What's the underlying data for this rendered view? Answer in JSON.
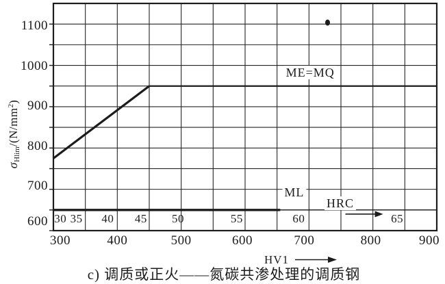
{
  "colors": {
    "ink": "#1c1c1c",
    "grid": "#242424",
    "background": "#ffffff"
  },
  "labels": {
    "sigma": "σ",
    "sigma_sub": "Hlim",
    "unit_pre": "/(N/mm",
    "unit_sup": "2",
    "unit_post": ")"
  },
  "chart_data": {
    "type": "line",
    "title": "c) 调质或正火——氮碳共渗处理的调质钢",
    "xlabel": "HV1",
    "ylabel": "σ Hlim/(N/mm²)",
    "xlim": [
      300,
      900
    ],
    "ylim": [
      600,
      1150
    ],
    "grid": true,
    "grid_step_x": 50,
    "grid_step_y": 50,
    "x_ticks": [
      300,
      400,
      500,
      600,
      700,
      800,
      900
    ],
    "y_ticks": [
      1100,
      1000,
      900,
      800,
      700,
      600
    ],
    "legend_position": "inline-labels",
    "series": [
      {
        "name": "ME=MQ",
        "points": [
          [
            300,
            775
          ],
          [
            450,
            950
          ],
          [
            900,
            950
          ]
        ],
        "label_pos": [
          702,
          982
        ],
        "strokes": [
          {
            "width": 3.2,
            "points": [
              [
                300,
                775
              ],
              [
                450,
                950
              ]
            ]
          },
          {
            "width": 2.2,
            "points": [
              [
                450,
                950
              ],
              [
                900,
                950
              ]
            ]
          }
        ]
      },
      {
        "name": "ML",
        "points": [
          [
            300,
            650
          ],
          [
            900,
            650
          ]
        ],
        "label_pos": [
          677,
          692
        ],
        "strokes": [
          {
            "width": 3.4,
            "points": [
              [
                300,
                650
              ],
              [
                655,
                650
              ]
            ]
          },
          {
            "width": 1.4,
            "points": [
              [
                655,
                650
              ],
              [
                900,
                650
              ]
            ]
          }
        ]
      }
    ],
    "secondary_scale": {
      "name": "HRC",
      "label_pos": [
        749,
        667
      ],
      "arrow": {
        "from_hv": 757,
        "to_hv": 816,
        "v": 640
      },
      "labels": [
        {
          "v": "30",
          "hv": 311
        },
        {
          "v": "35",
          "hv": 336
        },
        {
          "v": "40",
          "hv": 385
        },
        {
          "v": "45",
          "hv": 437
        },
        {
          "v": "50",
          "hv": 495
        },
        {
          "v": "55",
          "hv": 587
        },
        {
          "v": "60",
          "hv": 684
        },
        {
          "v": "65",
          "hv": 838
        }
      ],
      "label_value": 628
    },
    "artifacts": [
      {
        "type": "ink-speck",
        "x": 478.5,
        "y": 33
      }
    ]
  }
}
